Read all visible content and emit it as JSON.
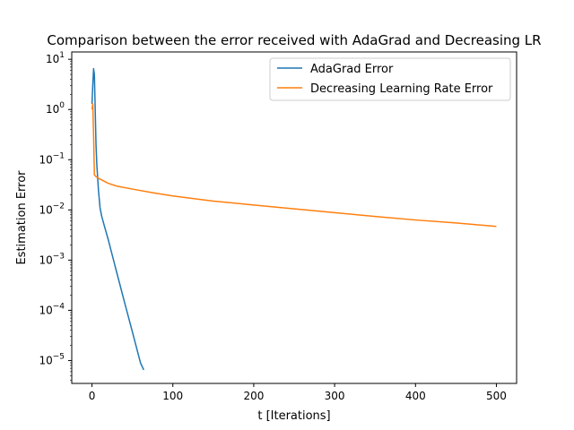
{
  "chart_data": {
    "type": "line",
    "title": "Comparison between the error received with AdaGrad and Decreasing LR",
    "xlabel": "t [Iterations]",
    "ylabel": "Estimation Error",
    "y_scale": "log",
    "xlim": [
      -25,
      525
    ],
    "ylim": [
      3.5e-06,
      14
    ],
    "x_ticks": [
      0,
      100,
      200,
      300,
      400,
      500
    ],
    "y_ticks": [
      {
        "value": 1e-05,
        "base": "10",
        "exp": "−5"
      },
      {
        "value": 0.0001,
        "base": "10",
        "exp": "−4"
      },
      {
        "value": 0.001,
        "base": "10",
        "exp": "−3"
      },
      {
        "value": 0.01,
        "base": "10",
        "exp": "−2"
      },
      {
        "value": 0.1,
        "base": "10",
        "exp": "−1"
      },
      {
        "value": 1,
        "base": "10",
        "exp": "0"
      },
      {
        "value": 10,
        "base": "10",
        "exp": "1"
      }
    ],
    "grid": false,
    "legend_position": "top-right",
    "series": [
      {
        "name": "AdaGrad Error",
        "color": "#1f77b4",
        "x": [
          0,
          1,
          2,
          3,
          4,
          5,
          6,
          8,
          10,
          12,
          15,
          20,
          30,
          40,
          50,
          60,
          64
        ],
        "y": [
          1.3,
          3.0,
          6.5,
          5.0,
          1.0,
          0.2,
          0.08,
          0.025,
          0.011,
          0.0075,
          0.005,
          0.0026,
          0.00062,
          0.00015,
          3.7e-05,
          9e-06,
          6.5e-06
        ]
      },
      {
        "name": "Decreasing Learning Rate Error",
        "color": "#ff7f0e",
        "x": [
          0,
          1,
          2,
          3,
          5,
          8,
          10,
          20,
          30,
          50,
          75,
          100,
          150,
          200,
          250,
          300,
          350,
          400,
          450,
          500
        ],
        "y": [
          1.0,
          1.3,
          0.3,
          0.05,
          0.046,
          0.043,
          0.041,
          0.034,
          0.03,
          0.026,
          0.022,
          0.019,
          0.015,
          0.0125,
          0.0105,
          0.0088,
          0.0074,
          0.0063,
          0.0055,
          0.0047
        ]
      }
    ]
  }
}
